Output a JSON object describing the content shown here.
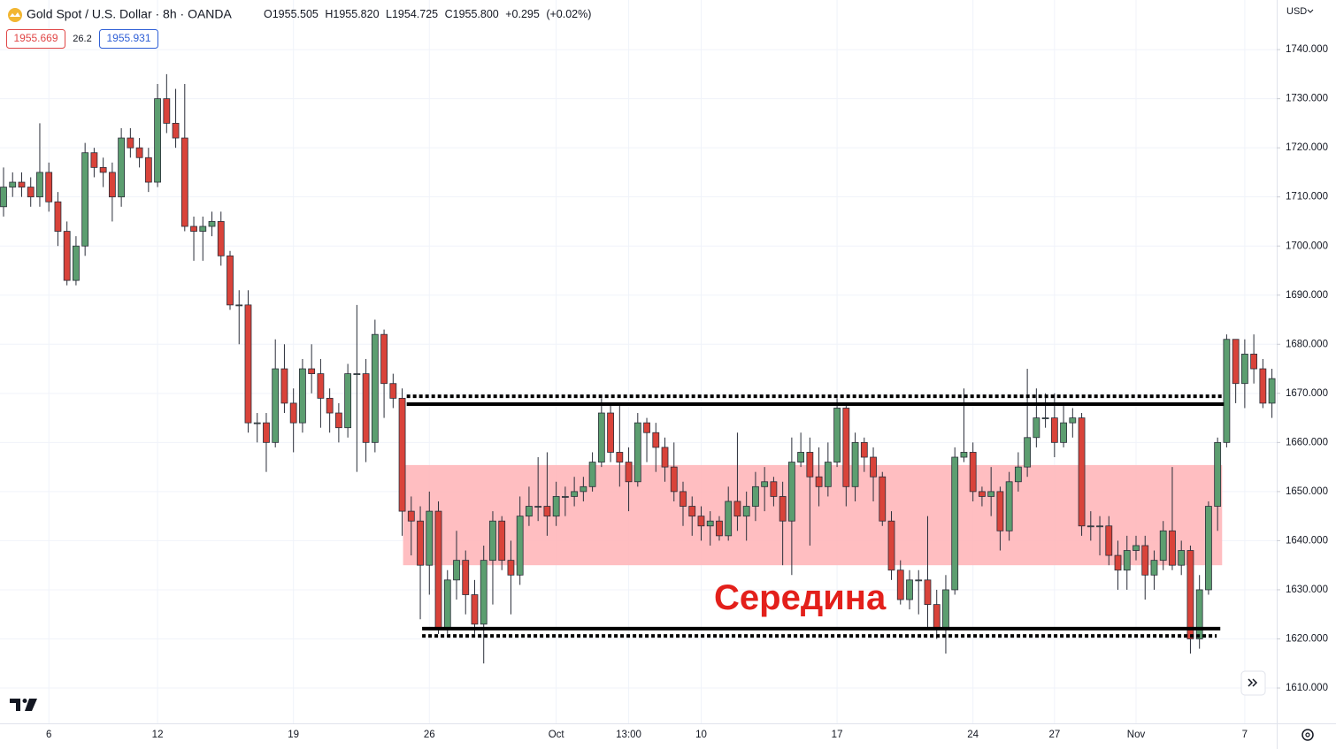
{
  "header": {
    "title": "Gold Spot / U.S. Dollar · 8h · OANDA",
    "ohlc": [
      {
        "label": "O",
        "value": "1955.505"
      },
      {
        "label": "H",
        "value": "1955.820"
      },
      {
        "label": "L",
        "value": "1954.725"
      },
      {
        "label": "C",
        "value": "1955.800"
      }
    ],
    "change": "+0.295",
    "change_pct": "(+0.02%)",
    "bid": "1955.669",
    "spread": "26.2",
    "ask": "1955.931",
    "currency": "USD"
  },
  "chart_data": {
    "type": "candlestick",
    "annotation": "Середина",
    "categories": [
      null,
      null,
      null,
      null,
      null,
      "6",
      null,
      null,
      null,
      null,
      null,
      null,
      null,
      null,
      null,
      null,
      null,
      "12",
      null,
      null,
      null,
      null,
      null,
      null,
      null,
      null,
      null,
      null,
      null,
      null,
      null,
      null,
      "19",
      null,
      null,
      null,
      null,
      null,
      null,
      null,
      null,
      null,
      null,
      null,
      null,
      null,
      null,
      "26",
      null,
      null,
      null,
      null,
      null,
      null,
      null,
      null,
      null,
      null,
      null,
      null,
      null,
      "Oct",
      null,
      null,
      null,
      null,
      null,
      null,
      null,
      "13:00",
      null,
      null,
      null,
      null,
      null,
      null,
      null,
      "10",
      null,
      null,
      null,
      null,
      null,
      null,
      null,
      null,
      null,
      null,
      null,
      null,
      null,
      null,
      "17",
      null,
      null,
      null,
      null,
      null,
      null,
      null,
      null,
      null,
      null,
      null,
      null,
      null,
      null,
      "24",
      null,
      null,
      null,
      null,
      null,
      null,
      null,
      null,
      "27",
      null,
      null,
      null,
      null,
      null,
      null,
      null,
      null,
      "Nov",
      null,
      null,
      null,
      null,
      null,
      null,
      null,
      null,
      null,
      null,
      null,
      "7",
      null,
      null,
      null
    ],
    "open": [
      1708,
      1712,
      1713,
      1712,
      1710,
      1715,
      1709,
      1703,
      1693,
      1700,
      1719,
      1716,
      1715,
      1710,
      1722,
      1720,
      1718,
      1713,
      1730,
      1725,
      1722,
      1704,
      1703,
      1704,
      1705,
      1698,
      1688,
      1688,
      1664,
      1664,
      1660,
      1675,
      1668,
      1664,
      1675,
      1674,
      1669,
      1666,
      1663,
      1674,
      1674,
      1660,
      1682,
      1672,
      1669,
      1646,
      1644,
      1635,
      1646,
      1622,
      1632,
      1636,
      1629,
      1623,
      1636,
      1644,
      1636,
      1633,
      1645,
      1647,
      1647,
      1645,
      1649,
      1649,
      1650,
      1651,
      1656,
      1666,
      1658,
      1656,
      1652,
      1664,
      1662,
      1659,
      1655,
      1650,
      1647,
      1645,
      1643,
      1644,
      1641,
      1648,
      1645,
      1647,
      1651,
      1652,
      1649,
      1644,
      1656,
      1658,
      1653,
      1651,
      1656,
      1667,
      1651,
      1660,
      1657,
      1653,
      1644,
      1634,
      1628,
      1632,
      1632,
      1627,
      1622,
      1630,
      1657,
      1658,
      1650,
      1649,
      1650,
      1642,
      1652,
      1655,
      1661,
      1665,
      1665,
      1660,
      1664,
      1665,
      1643,
      1643,
      1643,
      1637,
      1634,
      1638,
      1639,
      1633,
      1636,
      1642,
      1635,
      1638,
      1620,
      1630,
      1647,
      1660,
      1681,
      1672,
      1678,
      1675,
      1668
    ],
    "high": [
      1716,
      1715,
      1715,
      1714,
      1725,
      1717,
      1711,
      1705,
      1702,
      1721,
      1720,
      1718,
      1717,
      1724,
      1724,
      1722,
      1720,
      1733,
      1735,
      1732,
      1733,
      1706,
      1706,
      1707,
      1707,
      1699,
      1691,
      1691,
      1666,
      1666,
      1681,
      1680,
      1671,
      1677,
      1680,
      1677,
      1671,
      1668,
      1676,
      1688,
      1677,
      1685,
      1683,
      1674,
      1671,
      1649,
      1647,
      1650,
      1648,
      1634,
      1642,
      1638,
      1632,
      1639,
      1646,
      1645,
      1640,
      1649,
      1651,
      1657,
      1658,
      1652,
      1651,
      1653,
      1653,
      1658,
      1669,
      1668,
      1668,
      1659,
      1666,
      1665,
      1664,
      1661,
      1660,
      1652,
      1649,
      1647,
      1646,
      1645,
      1651,
      1662,
      1650,
      1654,
      1655,
      1653,
      1652,
      1661,
      1662,
      1661,
      1659,
      1660,
      1669,
      1668,
      1662,
      1661,
      1659,
      1654,
      1646,
      1636,
      1634,
      1634,
      1645,
      1630,
      1633,
      1659,
      1671,
      1660,
      1651,
      1655,
      1651,
      1654,
      1658,
      1675,
      1671,
      1670,
      1670,
      1668,
      1667,
      1666,
      1646,
      1645,
      1645,
      1640,
      1641,
      1641,
      1641,
      1638,
      1644,
      1655,
      1640,
      1639,
      1633,
      1648,
      1661,
      1682,
      1681,
      1681,
      1682,
      1677,
      1675
    ],
    "low": [
      1706,
      1710,
      1710,
      1708,
      1708,
      1707,
      1700,
      1692,
      1692,
      1698,
      1714,
      1712,
      1705,
      1708,
      1718,
      1716,
      1711,
      1712,
      1723,
      1720,
      1703,
      1697,
      1697,
      1702,
      1696,
      1687,
      1680,
      1662,
      1660,
      1654,
      1659,
      1666,
      1658,
      1662,
      1670,
      1663,
      1662,
      1660,
      1661,
      1654,
      1656,
      1658,
      1665,
      1667,
      1641,
      1637,
      1624,
      1629,
      1621,
      1621,
      1628,
      1625,
      1621,
      1615,
      1627,
      1634,
      1625,
      1631,
      1643,
      1644,
      1641,
      1643,
      1645,
      1647,
      1648,
      1650,
      1655,
      1656,
      1651,
      1646,
      1651,
      1656,
      1654,
      1652,
      1648,
      1643,
      1641,
      1640,
      1639,
      1640,
      1640,
      1642,
      1640,
      1644,
      1646,
      1647,
      1635,
      1633,
      1655,
      1639,
      1647,
      1649,
      1655,
      1647,
      1648,
      1654,
      1648,
      1643,
      1632,
      1627,
      1626,
      1625,
      1622,
      1620,
      1617,
      1629,
      1656,
      1648,
      1647,
      1645,
      1638,
      1640,
      1650,
      1653,
      1659,
      1663,
      1657,
      1659,
      1661,
      1641,
      1640,
      1637,
      1635,
      1630,
      1630,
      1636,
      1628,
      1630,
      1634,
      1634,
      1633,
      1617,
      1618,
      1629,
      1642,
      1659,
      1668,
      1667,
      1672,
      1667,
      1665
    ],
    "close": [
      1712,
      1713,
      1712,
      1710,
      1715,
      1709,
      1703,
      1693,
      1700,
      1719,
      1716,
      1715,
      1710,
      1722,
      1720,
      1718,
      1713,
      1730,
      1725,
      1722,
      1704,
      1703,
      1704,
      1705,
      1698,
      1688,
      1688,
      1664,
      1664,
      1660,
      1675,
      1668,
      1664,
      1675,
      1674,
      1669,
      1666,
      1663,
      1674,
      1674,
      1660,
      1682,
      1672,
      1669,
      1646,
      1644,
      1635,
      1646,
      1622,
      1632,
      1636,
      1629,
      1623,
      1636,
      1644,
      1636,
      1633,
      1645,
      1647,
      1647,
      1645,
      1649,
      1649,
      1650,
      1651,
      1656,
      1666,
      1658,
      1656,
      1652,
      1664,
      1662,
      1659,
      1655,
      1650,
      1647,
      1645,
      1643,
      1644,
      1641,
      1648,
      1645,
      1647,
      1651,
      1652,
      1649,
      1644,
      1656,
      1658,
      1653,
      1651,
      1656,
      1667,
      1651,
      1660,
      1657,
      1653,
      1644,
      1634,
      1628,
      1632,
      1632,
      1627,
      1622,
      1630,
      1657,
      1658,
      1650,
      1649,
      1650,
      1642,
      1652,
      1655,
      1661,
      1665,
      1665,
      1660,
      1664,
      1665,
      1643,
      1643,
      1643,
      1637,
      1634,
      1638,
      1639,
      1633,
      1636,
      1642,
      1635,
      1638,
      1620,
      1630,
      1647,
      1660,
      1681,
      1672,
      1678,
      1675,
      1668,
      1673
    ],
    "up_color": "#5c9e70",
    "down_color": "#d9433a",
    "zone": {
      "low": 1635,
      "high": 1655.4,
      "from": 44.1,
      "to": 134.5,
      "color": "#ffb3b6"
    },
    "hlines": [
      {
        "value": 1669.4,
        "from": 44.5,
        "to": 134.5,
        "style": "dotted"
      },
      {
        "value": 1667.8,
        "from": 44.5,
        "to": 134.7,
        "style": "solid"
      },
      {
        "value": 1622.1,
        "from": 46.2,
        "to": 134.3,
        "style": "solid"
      },
      {
        "value": 1620.6,
        "from": 46.2,
        "to": 133.9,
        "style": "dotted"
      }
    ],
    "ylim": [
      1602.8,
      1750.1
    ],
    "yticks": [
      {
        "value": 1610,
        "label": "1610.000"
      },
      {
        "value": 1620,
        "label": "1620.000"
      },
      {
        "value": 1630,
        "label": "1630.000"
      },
      {
        "value": 1640,
        "label": "1640.000"
      },
      {
        "value": 1650,
        "label": "1650.000"
      },
      {
        "value": 1660,
        "label": "1660.000"
      },
      {
        "value": 1670,
        "label": "1670.000"
      },
      {
        "value": 1680,
        "label": "1680.000"
      },
      {
        "value": 1690,
        "label": "1690.000"
      },
      {
        "value": 1700,
        "label": "1700.000"
      },
      {
        "value": 1710,
        "label": "1710.000"
      },
      {
        "value": 1720,
        "label": "1720.000"
      },
      {
        "value": 1730,
        "label": "1730.000"
      },
      {
        "value": 1740,
        "label": "1740.000"
      }
    ],
    "grid": true
  }
}
